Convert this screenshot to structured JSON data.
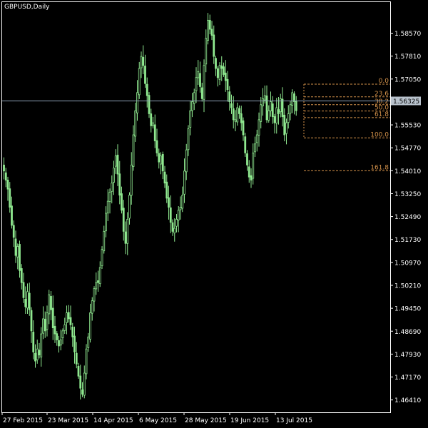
{
  "window": {
    "title": "GBPUSD,Daily"
  },
  "colors": {
    "background": "#000000",
    "frame": "#ffffff",
    "candle": "#8fe88f",
    "bid_line": "#8fa3b8",
    "bid_box": "#b9c3cd",
    "fib": "#d4924a"
  },
  "chart_data": {
    "type": "candlestick",
    "symbol": "GBPUSD",
    "timeframe": "Daily",
    "y_ticks": [
      "1.58570",
      "1.57810",
      "1.57050",
      "1.55530",
      "1.54770",
      "1.54010",
      "1.53250",
      "1.52490",
      "1.51730",
      "1.50970",
      "1.50210",
      "1.49450",
      "1.48690",
      "1.47930",
      "1.47170",
      "1.46410"
    ],
    "x_ticks": [
      "27 Feb 2015",
      "23 Mar 2015",
      "14 Apr 2015",
      "6 May 2015",
      "28 May 2015",
      "19 Jun 2015",
      "13 Jul 2015"
    ],
    "ylim": [
      1.46,
      1.596
    ],
    "current_price_label": "1.56325",
    "current_price": 1.56325,
    "fibonacci": {
      "levels": [
        {
          "label": "0.0",
          "price": 1.5688
        },
        {
          "label": "23.6",
          "price": 1.5646
        },
        {
          "label": "38.2",
          "price": 1.562
        },
        {
          "label": "50.0",
          "price": 1.5599
        },
        {
          "label": "61.8",
          "price": 1.5577
        },
        {
          "label": "100.0",
          "price": 1.551
        },
        {
          "label": "161.8",
          "price": 1.5401
        }
      ]
    },
    "closes": [
      1.54,
      1.537,
      1.534,
      1.528,
      1.522,
      1.518,
      1.512,
      1.515,
      1.507,
      1.503,
      1.498,
      1.495,
      1.5,
      1.494,
      1.487,
      1.48,
      1.477,
      1.481,
      1.479,
      1.486,
      1.491,
      1.487,
      1.493,
      1.499,
      1.494,
      1.488,
      1.486,
      1.484,
      1.482,
      1.484,
      1.487,
      1.489,
      1.493,
      1.491,
      1.489,
      1.485,
      1.48,
      1.476,
      1.472,
      1.468,
      1.466,
      1.473,
      1.481,
      1.485,
      1.493,
      1.497,
      1.501,
      1.503,
      1.503,
      1.508,
      1.514,
      1.52,
      1.526,
      1.53,
      1.533,
      1.536,
      1.541,
      1.545,
      1.539,
      1.532,
      1.527,
      1.52,
      1.516,
      1.524,
      1.532,
      1.542,
      1.552,
      1.56,
      1.566,
      1.574,
      1.578,
      1.575,
      1.569,
      1.565,
      1.559,
      1.555,
      1.556,
      1.55,
      1.546,
      1.543,
      1.545,
      1.54,
      1.536,
      1.531,
      1.528,
      1.523,
      1.52,
      1.521,
      1.524,
      1.527,
      1.528,
      1.532,
      1.54,
      1.547,
      1.554,
      1.56,
      1.563,
      1.566,
      1.571,
      1.573,
      1.568,
      1.564,
      1.575,
      1.584,
      1.59,
      1.587,
      1.585,
      1.578,
      1.574,
      1.571,
      1.575,
      1.574,
      1.572,
      1.57,
      1.567,
      1.563,
      1.561,
      1.557,
      1.557,
      1.561,
      1.559,
      1.556,
      1.552,
      1.546,
      1.542,
      1.538,
      1.537,
      1.546,
      1.549,
      1.552,
      1.557,
      1.562,
      1.564,
      1.565,
      1.557,
      1.56,
      1.563,
      1.558,
      1.556,
      1.561,
      1.559,
      1.564,
      1.558,
      1.552,
      1.556,
      1.559,
      1.562,
      1.566,
      1.563,
      1.56
    ]
  }
}
